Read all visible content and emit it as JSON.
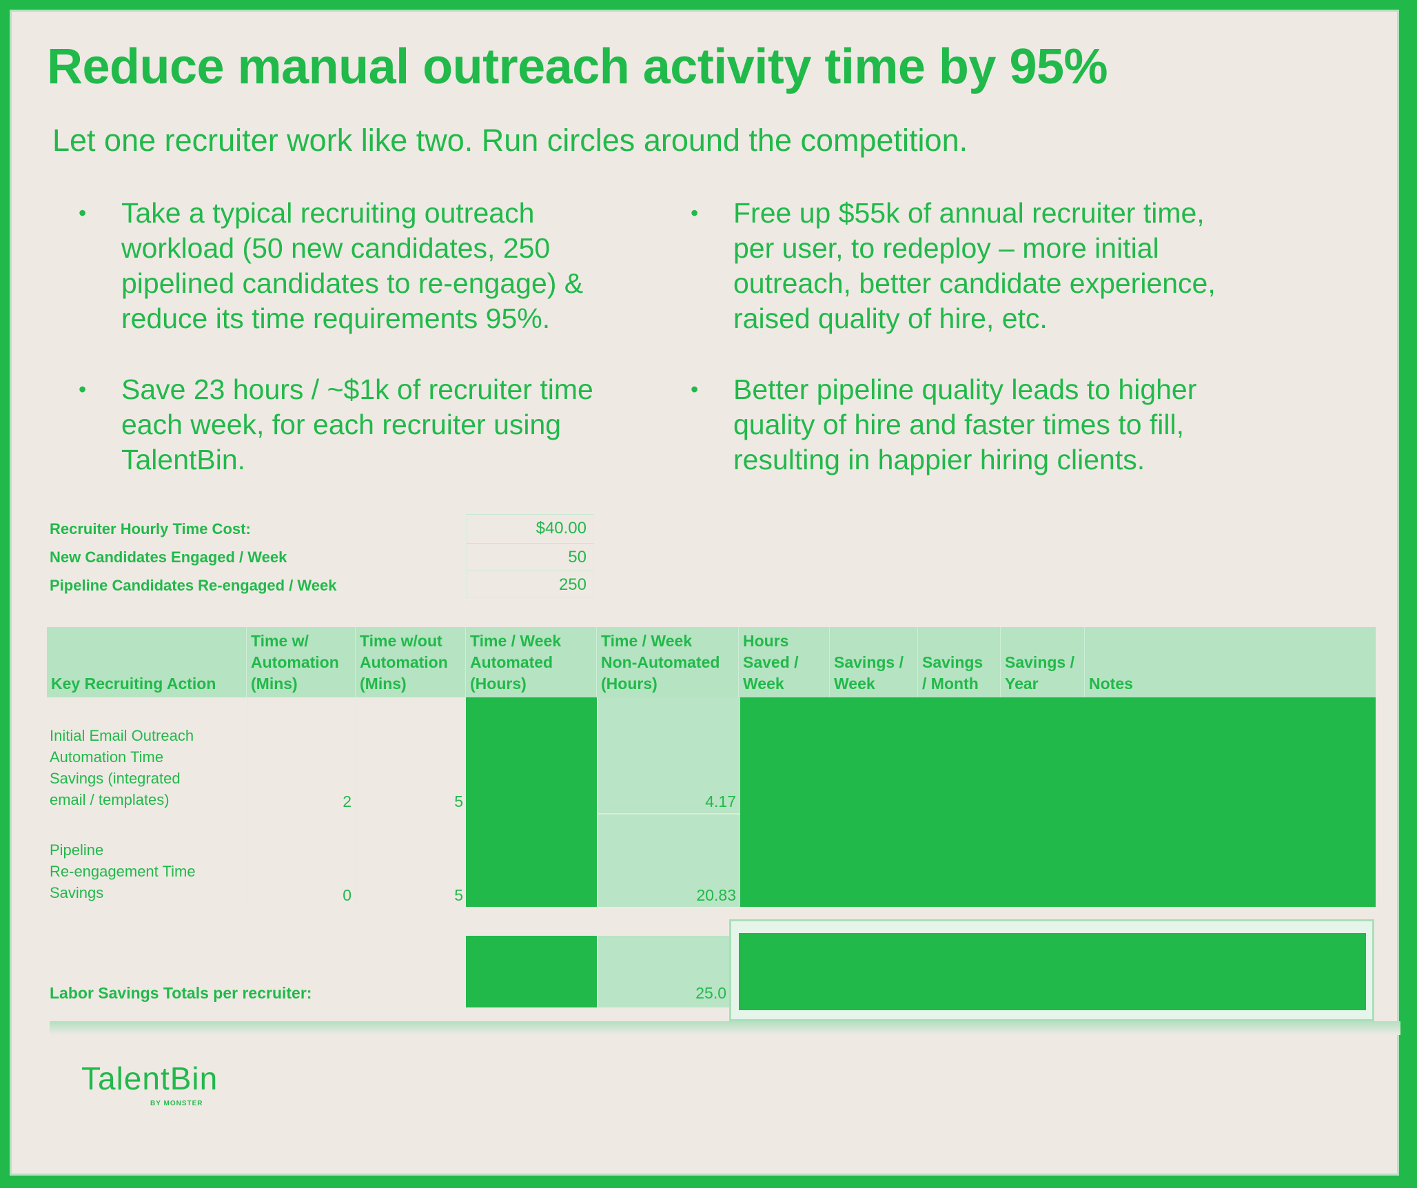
{
  "title": "Reduce manual outreach activity time by 95%",
  "subtitle": "Let one recruiter work like two. Run circles around the competition.",
  "bullets_left": [
    "Take a typical recruiting outreach\nworkload (50 new candidates, 250\npipelined candidates to re-engage) &\nreduce its time requirements 95%.",
    "Save 23 hours / ~$1k of recruiter time\neach week, for each recruiter using\nTalentBin."
  ],
  "bullets_right": [
    "Free up $55k of annual recruiter time,\nper user, to redeploy – more initial\noutreach, better candidate experience,\nraised quality of hire, etc.",
    "Better pipeline quality leads to higher\nquality of hire and faster times to fill,\nresulting in happier hiring clients."
  ],
  "bullet_symbol": "•",
  "inputs": [
    {
      "label": "Recruiter Hourly Time Cost:",
      "value": "$40.00"
    },
    {
      "label": "New Candidates Engaged / Week",
      "value": "50"
    },
    {
      "label": "Pipeline Candidates Re-engaged / Week",
      "value": "250"
    }
  ],
  "table": {
    "headers": [
      "Key Recruiting Action",
      "Time w/\nAutomation\n(Mins)",
      "Time w/out\nAutomation\n(Mins)",
      "Time / Week\nAutomated\n(Hours)",
      "Time / Week\nNon-Automated\n(Hours)",
      "Hours\nSaved /\nWeek",
      "Savings /\nWeek",
      "Savings\n/ Month",
      "Savings /\nYear",
      "Notes"
    ],
    "rows": [
      {
        "action": "Initial Email Outreach\nAutomation Time\nSavings (integrated\nemail / templates)",
        "with_auto": "2",
        "without_auto": "5",
        "non_automated_hours": "4.17"
      },
      {
        "action": "Pipeline\nRe-engagement Time\nSavings",
        "with_auto": "0",
        "without_auto": "5",
        "non_automated_hours": "20.83"
      }
    ],
    "totals_label": "Labor Savings Totals per recruiter:",
    "totals_non_automated_hours": "25.0"
  },
  "logo": {
    "name": "TalentBin",
    "tagline": "BY MONSTER"
  },
  "colors": {
    "brand_green": "#21b94a",
    "light_green": "#b6e3c2",
    "background": "#efe9e4"
  }
}
